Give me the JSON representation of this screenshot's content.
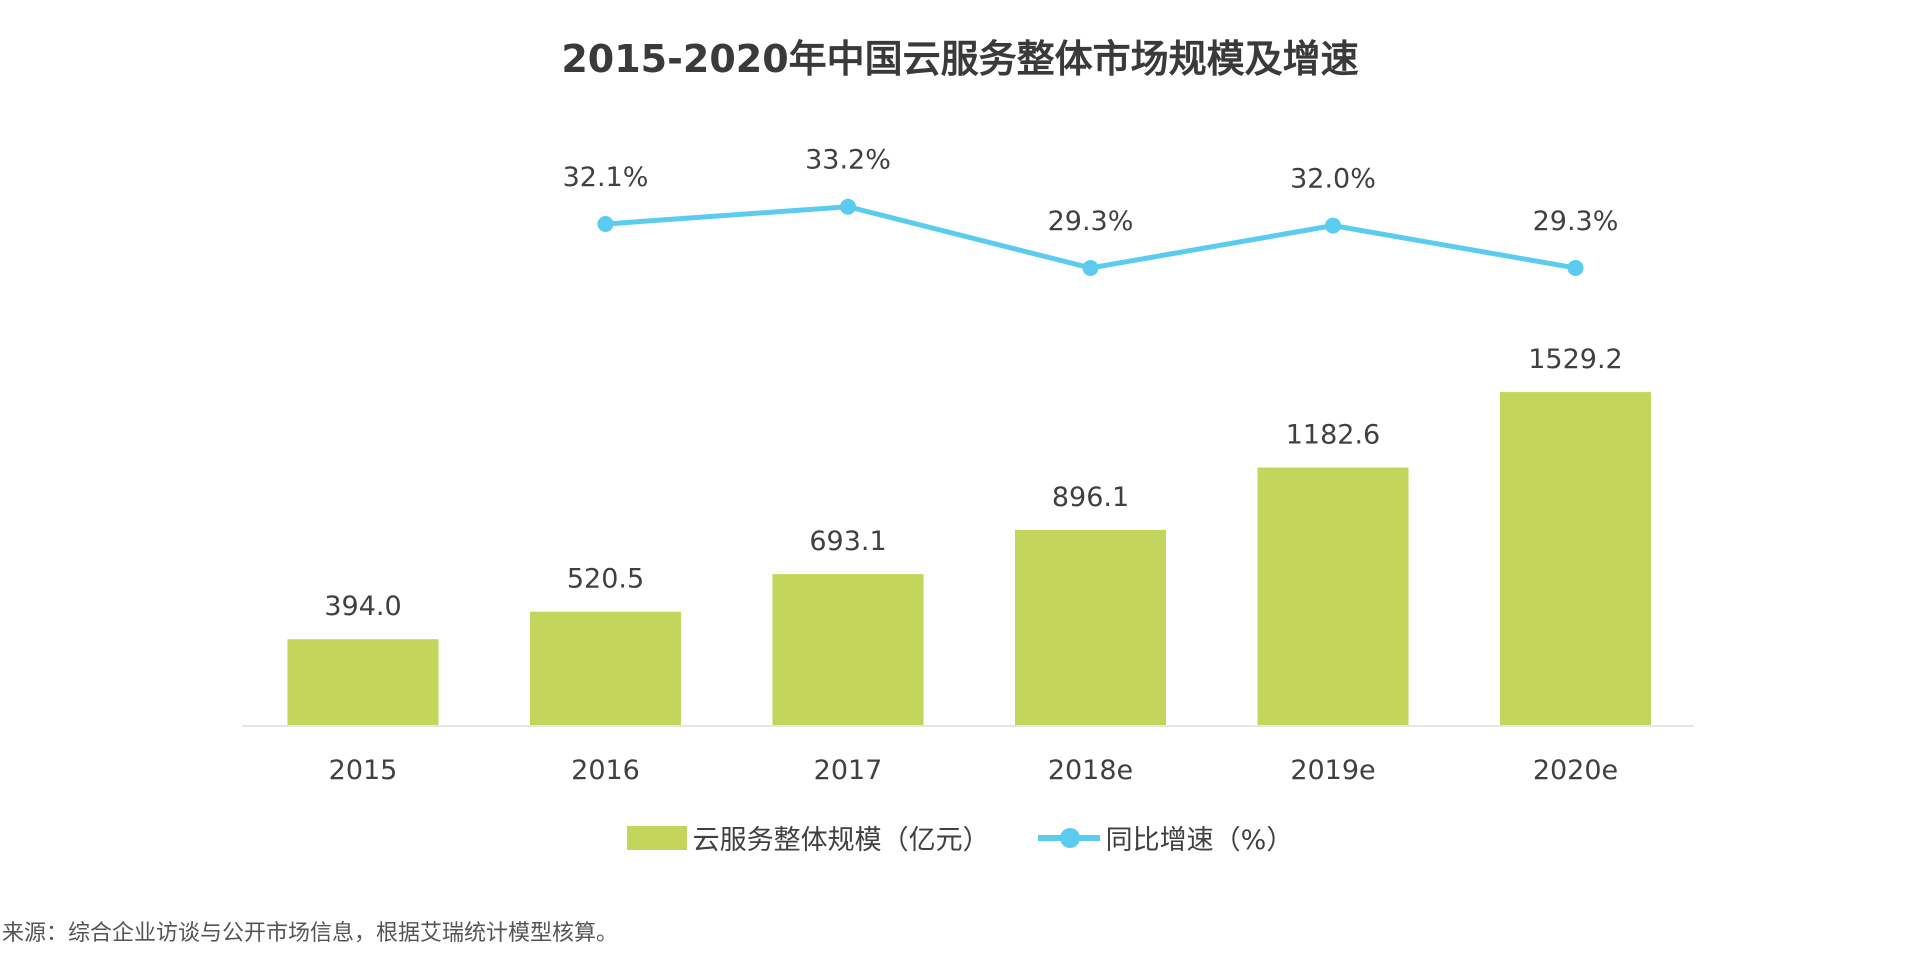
{
  "chart_data": {
    "type": "bar+line",
    "title": "2015-2020年中国云服务整体市场规模及增速",
    "categories": [
      "2015",
      "2016",
      "2017",
      "2018e",
      "2019e",
      "2020e"
    ],
    "series": [
      {
        "name": "云服务整体规模（亿元）",
        "type": "bar",
        "color": "#c3d55b",
        "values": [
          394.0,
          520.5,
          693.1,
          896.1,
          1182.6,
          1529.2
        ],
        "labels": [
          "394.0",
          "520.5",
          "693.1",
          "896.1",
          "1182.6",
          "1529.2"
        ]
      },
      {
        "name": "同比增速（%）",
        "type": "line",
        "color": "#5bcbef",
        "values": [
          null,
          32.1,
          33.2,
          29.3,
          32.0,
          29.3
        ],
        "labels": [
          "",
          "32.1%",
          "33.2%",
          "29.3%",
          "32.0%",
          "29.3%"
        ]
      }
    ],
    "grid": false,
    "legend": "bottom"
  },
  "source": "来源：综合企业访谈与公开市场信息，根据艾瑞统计模型核算。"
}
